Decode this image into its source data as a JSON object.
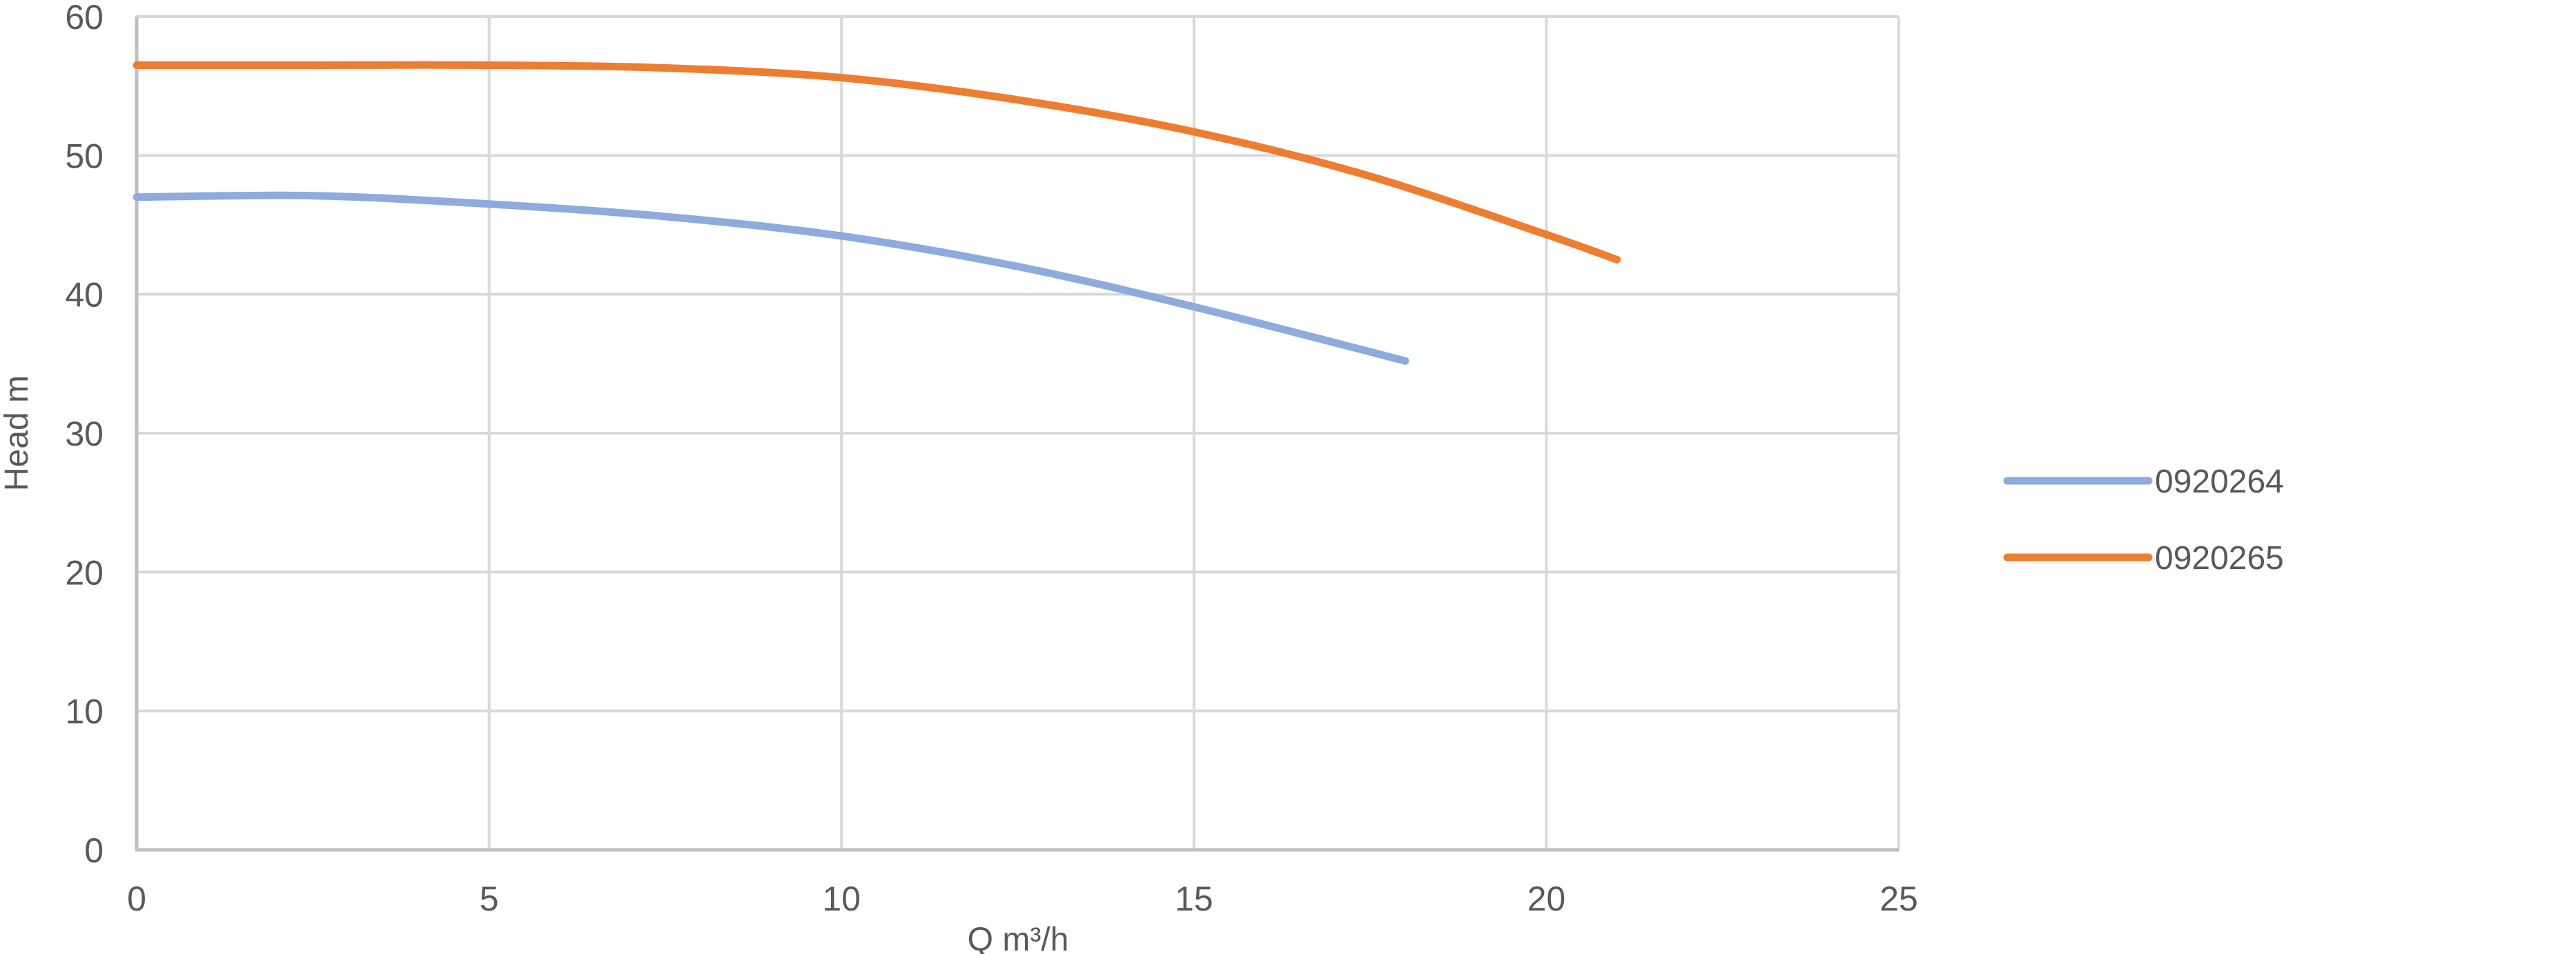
{
  "chart_data": {
    "type": "line",
    "title": "",
    "xlabel": "Q m³/h",
    "ylabel": "Head m",
    "xlim": [
      0,
      25
    ],
    "ylim": [
      0,
      60
    ],
    "xticks": [
      "0",
      "5",
      "10",
      "15",
      "20",
      "25"
    ],
    "yticks": [
      "0",
      "10",
      "20",
      "30",
      "40",
      "50",
      "60"
    ],
    "grid": true,
    "legend_position": "right",
    "series": [
      {
        "name": "0920264",
        "color": "#8FAADC",
        "x": [
          0,
          2.5,
          5,
          7.5,
          10,
          12.5,
          15,
          18
        ],
        "y": [
          47.0,
          47.1,
          46.5,
          45.6,
          44.2,
          42.0,
          39.1,
          35.2
        ]
      },
      {
        "name": "0920265",
        "color": "#ED7D31",
        "x": [
          0,
          2.5,
          5,
          7.5,
          10,
          12.5,
          15,
          17.5,
          20,
          21
        ],
        "y": [
          56.5,
          56.5,
          56.5,
          56.3,
          55.6,
          54.0,
          51.7,
          48.5,
          44.3,
          42.5
        ]
      }
    ]
  }
}
